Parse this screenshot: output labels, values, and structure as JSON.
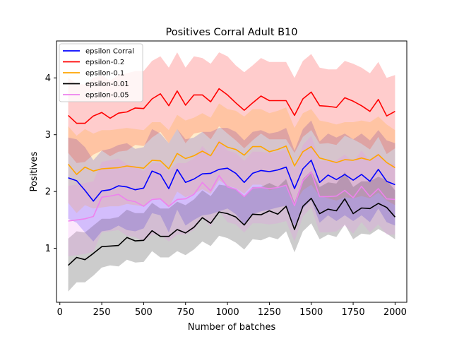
{
  "chart_data": {
    "type": "line",
    "title": "Positives Corral Adult B10",
    "xlabel": "Number of batches",
    "ylabel": "Positives",
    "xlim": [
      -20,
      2070
    ],
    "ylim": [
      0.05,
      4.65
    ],
    "xticks": [
      0,
      250,
      500,
      750,
      1000,
      1250,
      1500,
      1750,
      2000
    ],
    "yticks": [
      1,
      2,
      3,
      4
    ],
    "grid": false,
    "legend_position": "top-left",
    "x": [
      50,
      100,
      150,
      200,
      250,
      300,
      350,
      400,
      450,
      500,
      550,
      600,
      650,
      700,
      750,
      800,
      850,
      900,
      950,
      1000,
      1050,
      1100,
      1150,
      1200,
      1250,
      1300,
      1350,
      1400,
      1450,
      1500,
      1550,
      1600,
      1650,
      1700,
      1750,
      1800,
      1850,
      1900,
      1950,
      2000
    ],
    "series": [
      {
        "name": "epsilon Corral",
        "color": "#0000ff",
        "values": [
          2.24,
          2.19,
          2.02,
          1.83,
          2.01,
          2.03,
          2.1,
          2.08,
          2.03,
          2.06,
          2.36,
          2.3,
          2.05,
          2.39,
          2.16,
          2.22,
          2.31,
          2.32,
          2.39,
          2.41,
          2.32,
          2.16,
          2.32,
          2.37,
          2.35,
          2.38,
          2.43,
          2.05,
          2.4,
          2.55,
          2.16,
          2.29,
          2.21,
          2.3,
          2.2,
          2.3,
          2.18,
          2.39,
          2.18,
          2.12
        ],
        "band_upper": [
          2.95,
          2.92,
          2.78,
          2.55,
          2.72,
          2.75,
          2.82,
          2.85,
          2.75,
          2.78,
          3.1,
          3.02,
          2.85,
          3.1,
          2.92,
          2.95,
          3.05,
          3.05,
          3.12,
          3.12,
          3.05,
          2.9,
          3.05,
          3.08,
          3.02,
          3.05,
          3.12,
          2.72,
          3.1,
          3.25,
          2.88,
          3.02,
          2.95,
          3.02,
          2.92,
          3.02,
          2.9,
          3.08,
          2.9,
          2.85
        ],
        "band_lower": [
          1.52,
          1.45,
          1.28,
          1.12,
          1.3,
          1.32,
          1.4,
          1.32,
          1.3,
          1.35,
          1.62,
          1.58,
          1.28,
          1.68,
          1.4,
          1.5,
          1.58,
          1.6,
          1.65,
          1.7,
          1.6,
          1.42,
          1.6,
          1.65,
          1.68,
          1.72,
          1.75,
          1.38,
          1.7,
          1.85,
          1.45,
          1.58,
          1.48,
          1.58,
          1.48,
          1.58,
          1.46,
          1.7,
          1.46,
          1.4
        ]
      },
      {
        "name": "epsilon-0.2",
        "color": "#ff0000",
        "values": [
          3.34,
          3.2,
          3.2,
          3.33,
          3.39,
          3.29,
          3.38,
          3.4,
          3.47,
          3.46,
          3.63,
          3.72,
          3.51,
          3.77,
          3.52,
          3.7,
          3.7,
          3.58,
          3.81,
          3.7,
          3.56,
          3.43,
          3.56,
          3.68,
          3.6,
          3.6,
          3.6,
          3.34,
          3.63,
          3.75,
          3.51,
          3.5,
          3.48,
          3.65,
          3.59,
          3.51,
          3.41,
          3.62,
          3.33,
          3.41
        ],
        "band_upper": [
          4.0,
          3.9,
          3.88,
          4.0,
          4.05,
          3.95,
          4.05,
          4.08,
          4.12,
          4.12,
          4.3,
          4.38,
          4.18,
          4.45,
          4.18,
          4.38,
          4.35,
          4.25,
          4.45,
          4.38,
          4.22,
          4.1,
          4.22,
          4.35,
          4.28,
          4.28,
          4.28,
          4.0,
          4.3,
          4.42,
          4.18,
          4.15,
          4.15,
          4.3,
          4.25,
          4.18,
          4.08,
          4.28,
          4.0,
          4.05
        ],
        "band_lower": [
          2.68,
          2.5,
          2.52,
          2.65,
          2.72,
          2.62,
          2.7,
          2.72,
          2.82,
          2.8,
          2.95,
          3.05,
          2.85,
          3.1,
          2.85,
          3.02,
          3.05,
          2.92,
          3.15,
          3.02,
          2.9,
          2.76,
          2.9,
          3.02,
          2.92,
          2.92,
          2.92,
          2.68,
          2.96,
          3.08,
          2.84,
          2.85,
          2.82,
          2.98,
          2.92,
          2.84,
          2.74,
          2.96,
          2.66,
          2.76
        ]
      },
      {
        "name": "epsilon-0.1",
        "color": "#ffa500",
        "values": [
          2.48,
          2.3,
          2.43,
          2.36,
          2.4,
          2.41,
          2.42,
          2.45,
          2.43,
          2.41,
          2.55,
          2.54,
          2.4,
          2.67,
          2.58,
          2.63,
          2.71,
          2.63,
          2.87,
          2.78,
          2.74,
          2.64,
          2.79,
          2.79,
          2.7,
          2.74,
          2.8,
          2.45,
          2.7,
          2.79,
          2.59,
          2.55,
          2.51,
          2.56,
          2.55,
          2.59,
          2.55,
          2.65,
          2.51,
          2.42
        ],
        "band_upper": [
          3.15,
          2.98,
          3.1,
          3.02,
          3.08,
          3.08,
          3.1,
          3.12,
          3.1,
          3.08,
          3.22,
          3.22,
          3.08,
          3.35,
          3.25,
          3.3,
          3.38,
          3.3,
          3.55,
          3.45,
          3.42,
          3.32,
          3.45,
          3.45,
          3.38,
          3.42,
          3.48,
          3.12,
          3.38,
          3.45,
          3.25,
          3.22,
          3.18,
          3.22,
          3.22,
          3.25,
          3.22,
          3.32,
          3.18,
          3.08
        ],
        "band_lower": [
          1.8,
          1.62,
          1.76,
          1.7,
          1.72,
          1.74,
          1.74,
          1.78,
          1.76,
          1.74,
          1.88,
          1.86,
          1.72,
          2.0,
          1.9,
          1.96,
          2.04,
          1.96,
          2.2,
          2.1,
          2.06,
          1.96,
          2.12,
          2.12,
          2.02,
          2.06,
          2.12,
          1.78,
          2.02,
          2.12,
          1.92,
          1.88,
          1.84,
          1.9,
          1.88,
          1.92,
          1.88,
          1.98,
          1.84,
          1.76
        ]
      },
      {
        "name": "epsilon-0.01",
        "color": "#000000",
        "values": [
          0.7,
          0.84,
          0.8,
          0.91,
          1.03,
          1.04,
          1.05,
          1.19,
          1.13,
          1.14,
          1.31,
          1.21,
          1.21,
          1.33,
          1.27,
          1.37,
          1.54,
          1.44,
          1.64,
          1.61,
          1.55,
          1.41,
          1.6,
          1.59,
          1.66,
          1.6,
          1.74,
          1.33,
          1.74,
          1.88,
          1.61,
          1.69,
          1.66,
          1.87,
          1.61,
          1.71,
          1.7,
          1.79,
          1.72,
          1.55
        ],
        "band_upper": [
          1.17,
          1.3,
          1.28,
          1.4,
          1.52,
          1.52,
          1.55,
          1.68,
          1.62,
          1.62,
          1.8,
          1.7,
          1.7,
          1.82,
          1.76,
          1.86,
          2.02,
          1.92,
          2.12,
          2.1,
          2.04,
          1.9,
          2.08,
          2.08,
          2.15,
          2.08,
          2.22,
          1.8,
          2.22,
          2.36,
          2.08,
          2.16,
          2.14,
          2.34,
          2.08,
          2.18,
          2.18,
          2.26,
          2.2,
          2.02
        ],
        "band_lower": [
          0.24,
          0.4,
          0.4,
          0.52,
          0.66,
          0.7,
          0.68,
          0.8,
          0.75,
          0.76,
          0.95,
          0.84,
          0.84,
          0.95,
          0.88,
          0.98,
          1.12,
          1.04,
          1.22,
          1.18,
          1.1,
          0.98,
          1.16,
          1.14,
          1.2,
          1.16,
          1.3,
          0.93,
          1.3,
          1.44,
          1.16,
          1.24,
          1.2,
          1.42,
          1.16,
          1.26,
          1.24,
          1.34,
          1.26,
          1.16
        ]
      },
      {
        "name": "epsilon-0.05",
        "color": "#ee82ee",
        "values": [
          1.48,
          1.5,
          1.52,
          1.56,
          1.9,
          1.92,
          1.95,
          1.85,
          1.82,
          1.74,
          1.86,
          1.87,
          1.74,
          1.86,
          1.87,
          1.95,
          2.16,
          2.01,
          2.28,
          2.08,
          2.04,
          1.91,
          2.06,
          2.07,
          2.05,
          2.07,
          2.11,
          1.75,
          2.19,
          2.34,
          1.91,
          1.91,
          1.92,
          2.02,
          1.89,
          2.09,
          1.91,
          2.05,
          1.87,
          1.86
        ],
        "band_upper": [
          2.1,
          2.12,
          2.15,
          2.18,
          2.52,
          2.55,
          2.58,
          2.48,
          2.45,
          2.36,
          2.5,
          2.5,
          2.36,
          2.5,
          2.5,
          2.58,
          2.8,
          2.64,
          2.92,
          2.72,
          2.68,
          2.54,
          2.7,
          2.7,
          2.68,
          2.7,
          2.74,
          2.38,
          2.82,
          2.98,
          2.54,
          2.54,
          2.55,
          2.65,
          2.52,
          2.72,
          2.54,
          2.68,
          2.5,
          2.48
        ],
        "band_lower": [
          0.86,
          0.88,
          0.9,
          0.94,
          1.28,
          1.3,
          1.32,
          1.22,
          1.2,
          1.12,
          1.24,
          1.24,
          1.12,
          1.24,
          1.24,
          1.32,
          1.54,
          1.38,
          1.66,
          1.46,
          1.42,
          1.28,
          1.44,
          1.44,
          1.42,
          1.44,
          1.48,
          1.12,
          1.56,
          1.72,
          1.28,
          1.28,
          1.3,
          1.4,
          1.26,
          1.46,
          1.28,
          1.42,
          1.24,
          1.24
        ]
      }
    ]
  }
}
